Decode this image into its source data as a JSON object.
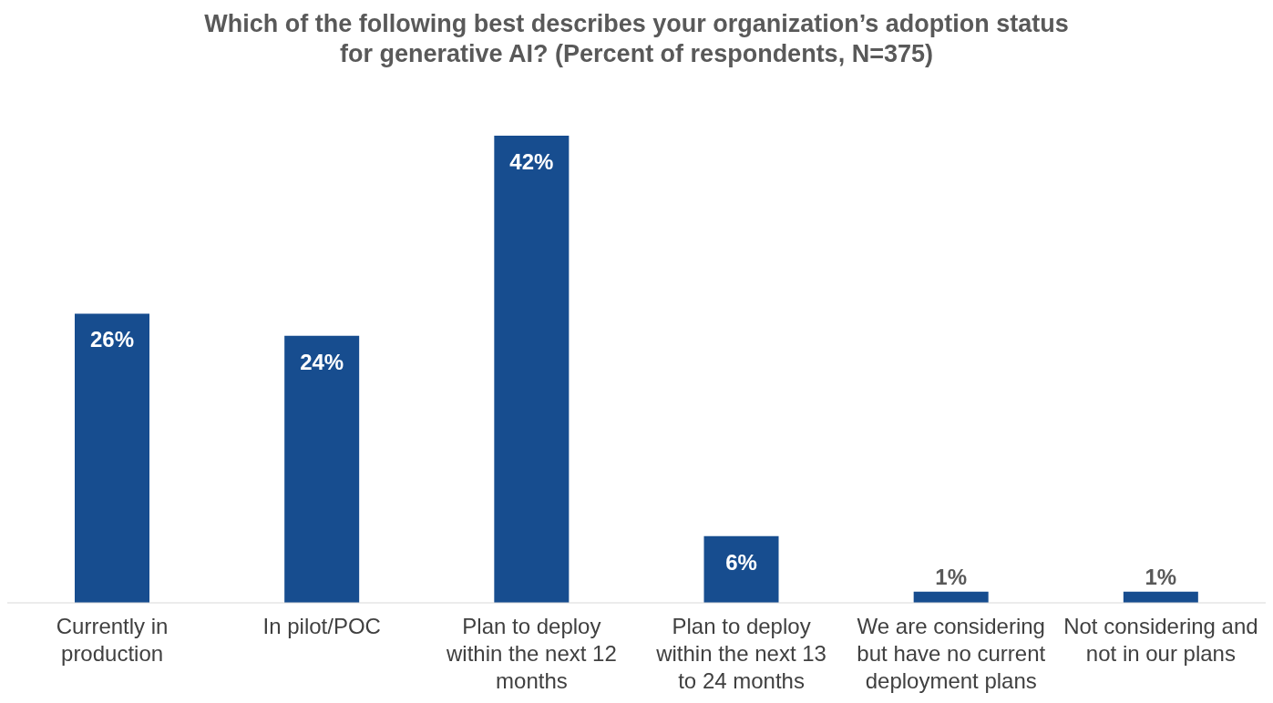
{
  "chart_data": {
    "type": "bar",
    "title": "Which of the following best describes your organization’s adoption status\nfor generative AI? (Percent of respondents, N=375)",
    "categories": [
      "Currently in production",
      "In pilot/POC",
      "Plan to deploy within the next 12 months",
      "Plan to deploy within the next 13 to 24 months",
      "We are considering but have no current deployment plans",
      "Not considering and not in our plans"
    ],
    "values": [
      26,
      24,
      42,
      6,
      1,
      1
    ],
    "value_labels": [
      "26%",
      "24%",
      "42%",
      "6%",
      "1%",
      "1%"
    ],
    "color": "#174d8f",
    "grid": false,
    "legend": false
  }
}
